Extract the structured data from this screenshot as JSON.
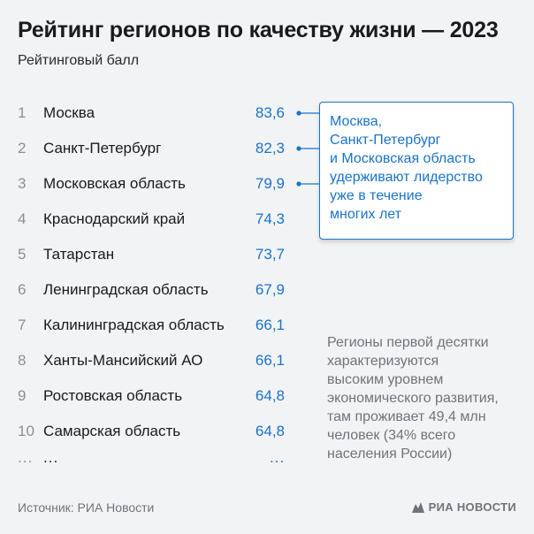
{
  "header": {
    "title": "Рейтинг регионов по качеству жизни — 2023",
    "subtitle": "Рейтинговый балл"
  },
  "chart_data": {
    "type": "table",
    "title": "Рейтинг регионов по качеству жизни — 2023",
    "ylabel": "Рейтинговый балл",
    "rows": [
      {
        "rank": "1",
        "region": "Москва",
        "value": "83,6"
      },
      {
        "rank": "2",
        "region": "Санкт-Петербург",
        "value": "82,3"
      },
      {
        "rank": "3",
        "region": "Московская область",
        "value": "79,9"
      },
      {
        "rank": "4",
        "region": "Краснодарский край",
        "value": "74,3"
      },
      {
        "rank": "5",
        "region": "Татарстан",
        "value": "73,7"
      },
      {
        "rank": "6",
        "region": "Ленинградская область",
        "value": "67,9"
      },
      {
        "rank": "7",
        "region": "Калининградская область",
        "value": "66,1"
      },
      {
        "rank": "8",
        "region": "Ханты-Мансийский АО",
        "value": "66,1"
      },
      {
        "rank": "9",
        "region": "Ростовская область",
        "value": "64,8"
      },
      {
        "rank": "10",
        "region": "Самарская область",
        "value": "64,8"
      }
    ],
    "ellipsis": {
      "rank": "...",
      "region": "...",
      "value": "..."
    },
    "highlight_rows": [
      1,
      2,
      3
    ],
    "colors": {
      "value": "#1a73c8",
      "rank": "#8a8f96",
      "note": "#6f747a"
    }
  },
  "callout": {
    "text": "Москва,\nСанкт-Петербург\nи Московская область\nудерживают лидерство\nуже в течение\nмногих лет"
  },
  "note": {
    "text": "Регионы первой десятки\nхарактеризуются\nвысоким уровнем\nэкономического развития,\nтам проживает 49,4 млн\nчеловек (34% всего\nнаселения России)"
  },
  "footer": {
    "source": "Источник: РИА Новости",
    "logo_text": "РИА НОВОСТИ",
    "logo_icon": "ria-logo-icon"
  }
}
